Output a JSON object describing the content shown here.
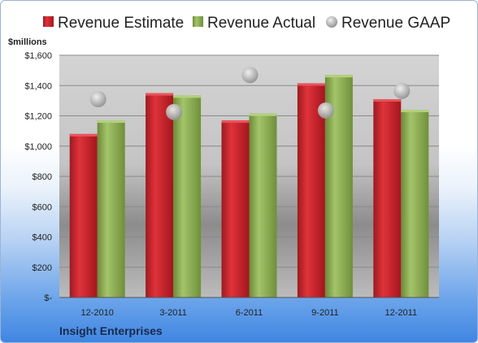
{
  "chart_data": {
    "type": "bar",
    "ylabel": "$millions",
    "ylim": [
      0,
      1600
    ],
    "yticks": [
      "$-",
      "$200",
      "$400",
      "$600",
      "$800",
      "$1,000",
      "$1,200",
      "$1,400",
      "$1,600"
    ],
    "categories": [
      "12-2010",
      "3-2011",
      "6-2011",
      "9-2011",
      "12-2011"
    ],
    "series": [
      {
        "name": "Revenue Estimate",
        "kind": "bar",
        "color": "#c8202a",
        "values": [
          1080,
          1350,
          1170,
          1415,
          1310
        ]
      },
      {
        "name": "Revenue Actual",
        "kind": "bar",
        "color": "#8aac52",
        "values": [
          1170,
          1335,
          1215,
          1470,
          1240
        ]
      },
      {
        "name": "Revenue GAAP",
        "kind": "marker",
        "color": "#b0b0b0",
        "values": [
          1310,
          1225,
          1470,
          1235,
          1365
        ]
      }
    ],
    "legend_position": "top",
    "grid": true
  },
  "company": "Insight Enterprises",
  "colors": {
    "plot_bg": "#c9c9c9",
    "gridline": "#8a8a8a"
  }
}
